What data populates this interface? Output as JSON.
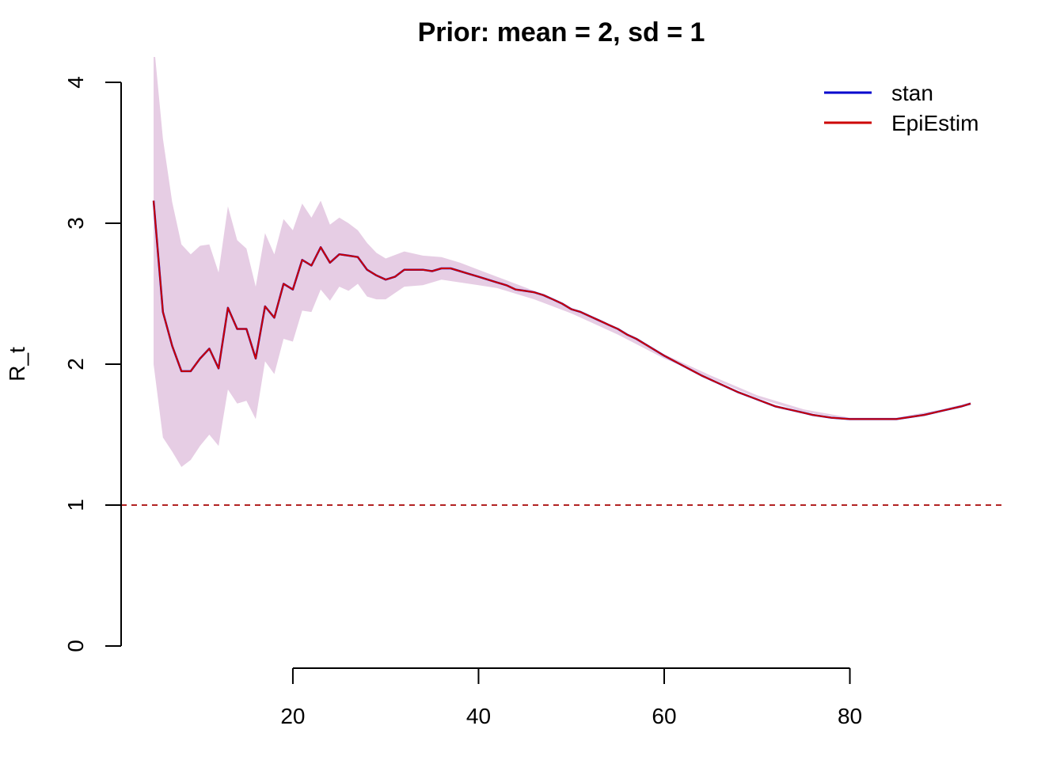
{
  "chart_data": {
    "type": "line",
    "title": "Prior: mean = 2, sd = 1",
    "xlabel": "",
    "ylabel": "R_t",
    "xlim": [
      1.5,
      96.5
    ],
    "ylim": [
      0,
      4
    ],
    "x_ticks": [
      20,
      40,
      60,
      80
    ],
    "y_ticks": [
      0,
      1,
      2,
      3,
      4
    ],
    "reference_line": {
      "y": 1,
      "style": "dashed",
      "color": "#b22222"
    },
    "legend": {
      "position": "top-right",
      "entries": [
        "stan",
        "EpiEstim"
      ]
    },
    "band": {
      "color": "#e6cde4",
      "x": [
        5,
        6,
        7,
        8,
        9,
        10,
        11,
        12,
        13,
        14,
        15,
        16,
        17,
        18,
        19,
        20,
        21,
        22,
        23,
        24,
        25,
        26,
        27,
        28,
        29,
        30,
        32,
        34,
        36,
        38,
        40,
        42,
        44,
        46,
        48,
        50,
        55,
        60,
        65,
        70,
        75,
        80,
        85,
        90,
        93
      ],
      "lower": [
        2.0,
        1.48,
        1.38,
        1.27,
        1.32,
        1.42,
        1.5,
        1.42,
        1.82,
        1.72,
        1.74,
        1.61,
        2.02,
        1.93,
        2.18,
        2.16,
        2.38,
        2.37,
        2.53,
        2.45,
        2.55,
        2.52,
        2.57,
        2.48,
        2.46,
        2.46,
        2.55,
        2.56,
        2.6,
        2.58,
        2.56,
        2.54,
        2.5,
        2.46,
        2.41,
        2.36,
        2.21,
        2.04,
        1.9,
        1.76,
        1.66,
        1.61,
        1.61,
        1.67,
        1.71
      ],
      "upper": [
        4.3,
        3.6,
        3.15,
        2.85,
        2.78,
        2.84,
        2.85,
        2.65,
        3.12,
        2.88,
        2.82,
        2.55,
        2.93,
        2.78,
        3.03,
        2.95,
        3.14,
        3.04,
        3.16,
        2.99,
        3.04,
        3.0,
        2.95,
        2.86,
        2.79,
        2.75,
        2.8,
        2.77,
        2.76,
        2.72,
        2.67,
        2.62,
        2.57,
        2.52,
        2.45,
        2.4,
        2.24,
        2.07,
        1.92,
        1.78,
        1.68,
        1.62,
        1.62,
        1.68,
        1.73
      ]
    },
    "series": [
      {
        "name": "stan",
        "color": "#0000cd",
        "x": [
          5,
          6,
          7,
          8,
          9,
          10,
          11,
          12,
          13,
          14,
          15,
          16,
          17,
          18,
          19,
          20,
          21,
          22,
          23,
          24,
          25,
          26,
          27,
          28,
          29,
          30,
          31,
          32,
          33,
          34,
          35,
          36,
          37,
          38,
          39,
          40,
          41,
          42,
          43,
          44,
          45,
          46,
          47,
          48,
          49,
          50,
          51,
          52,
          53,
          54,
          55,
          56,
          57,
          58,
          59,
          60,
          62,
          64,
          66,
          68,
          70,
          72,
          74,
          76,
          78,
          80,
          82,
          84,
          85,
          86,
          88,
          90,
          92,
          93
        ],
        "y": [
          3.16,
          2.37,
          2.13,
          1.95,
          1.95,
          2.04,
          2.11,
          1.97,
          2.4,
          2.25,
          2.25,
          2.04,
          2.41,
          2.33,
          2.57,
          2.53,
          2.74,
          2.7,
          2.83,
          2.72,
          2.78,
          2.77,
          2.76,
          2.67,
          2.63,
          2.6,
          2.62,
          2.67,
          2.67,
          2.67,
          2.66,
          2.68,
          2.68,
          2.66,
          2.64,
          2.62,
          2.6,
          2.58,
          2.56,
          2.53,
          2.52,
          2.51,
          2.49,
          2.46,
          2.43,
          2.39,
          2.37,
          2.34,
          2.31,
          2.28,
          2.25,
          2.21,
          2.18,
          2.14,
          2.1,
          2.06,
          1.99,
          1.92,
          1.86,
          1.8,
          1.75,
          1.7,
          1.67,
          1.64,
          1.62,
          1.61,
          1.61,
          1.61,
          1.61,
          1.62,
          1.64,
          1.67,
          1.7,
          1.72
        ]
      },
      {
        "name": "EpiEstim",
        "color": "#cd0000",
        "x": [
          5,
          6,
          7,
          8,
          9,
          10,
          11,
          12,
          13,
          14,
          15,
          16,
          17,
          18,
          19,
          20,
          21,
          22,
          23,
          24,
          25,
          26,
          27,
          28,
          29,
          30,
          31,
          32,
          33,
          34,
          35,
          36,
          37,
          38,
          39,
          40,
          41,
          42,
          43,
          44,
          45,
          46,
          47,
          48,
          49,
          50,
          51,
          52,
          53,
          54,
          55,
          56,
          57,
          58,
          59,
          60,
          62,
          64,
          66,
          68,
          70,
          72,
          74,
          76,
          78,
          80,
          82,
          84,
          85,
          86,
          88,
          90,
          92,
          93
        ],
        "y": [
          3.16,
          2.37,
          2.13,
          1.95,
          1.95,
          2.04,
          2.11,
          1.97,
          2.4,
          2.25,
          2.25,
          2.04,
          2.41,
          2.33,
          2.57,
          2.53,
          2.74,
          2.7,
          2.83,
          2.72,
          2.78,
          2.77,
          2.76,
          2.67,
          2.63,
          2.6,
          2.62,
          2.67,
          2.67,
          2.67,
          2.66,
          2.68,
          2.68,
          2.66,
          2.64,
          2.62,
          2.6,
          2.58,
          2.56,
          2.53,
          2.52,
          2.51,
          2.49,
          2.46,
          2.43,
          2.39,
          2.37,
          2.34,
          2.31,
          2.28,
          2.25,
          2.21,
          2.18,
          2.14,
          2.1,
          2.06,
          1.99,
          1.92,
          1.86,
          1.8,
          1.75,
          1.7,
          1.67,
          1.64,
          1.62,
          1.61,
          1.61,
          1.61,
          1.61,
          1.62,
          1.64,
          1.67,
          1.7,
          1.72
        ]
      }
    ]
  }
}
